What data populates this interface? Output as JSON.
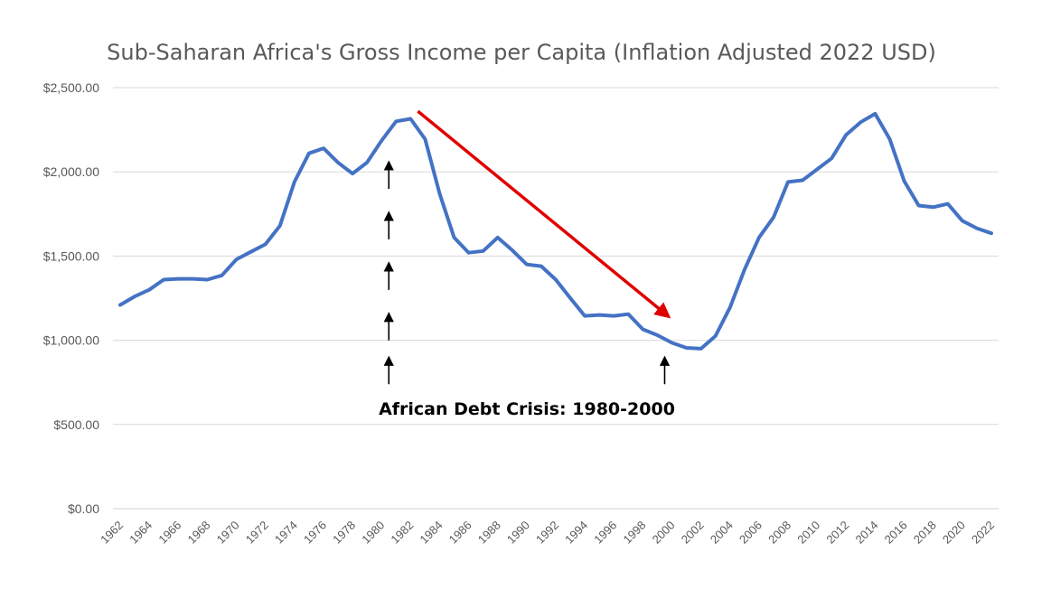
{
  "chart_data": {
    "type": "line",
    "title": "Sub-Saharan Africa's Gross Income per Capita (Inflation Adjusted 2022 USD)",
    "xlabel": "",
    "ylabel": "",
    "ylim": [
      0,
      2500
    ],
    "yticks": [
      0,
      500,
      1000,
      1500,
      2000,
      2500
    ],
    "ytick_labels": [
      "$0.00",
      "$500.00",
      "$1,000.00",
      "$1,500.00",
      "$2,000.00",
      "$2,500.00"
    ],
    "xtick_labels": [
      "1962",
      "1964",
      "1966",
      "1968",
      "1970",
      "1972",
      "1974",
      "1976",
      "1978",
      "1980",
      "1982",
      "1984",
      "1986",
      "1988",
      "1990",
      "1992",
      "1994",
      "1996",
      "1998",
      "2000",
      "2002",
      "2004",
      "2006",
      "2008",
      "2010",
      "2012",
      "2014",
      "2016",
      "2018",
      "2020",
      "2022"
    ],
    "grid": true,
    "legend": "none",
    "x": [
      1962,
      1963,
      1964,
      1965,
      1966,
      1967,
      1968,
      1969,
      1970,
      1971,
      1972,
      1973,
      1974,
      1975,
      1976,
      1977,
      1978,
      1979,
      1980,
      1981,
      1982,
      1983,
      1984,
      1985,
      1986,
      1987,
      1988,
      1989,
      1990,
      1991,
      1992,
      1993,
      1994,
      1995,
      1996,
      1997,
      1998,
      1999,
      2000,
      2001,
      2002,
      2003,
      2004,
      2005,
      2006,
      2007,
      2008,
      2009,
      2010,
      2011,
      2012,
      2013,
      2014,
      2015,
      2016,
      2017,
      2018,
      2019,
      2020,
      2021,
      2022
    ],
    "series": [
      {
        "color": "#4472C4",
        "values": [
          1210,
          1260,
          1300,
          1360,
          1365,
          1365,
          1360,
          1385,
          1480,
          1525,
          1570,
          1680,
          1940,
          2110,
          2140,
          2055,
          1990,
          2055,
          2185,
          2300,
          2315,
          2195,
          1870,
          1610,
          1520,
          1530,
          1610,
          1535,
          1450,
          1440,
          1360,
          1250,
          1145,
          1150,
          1145,
          1155,
          1065,
          1030,
          985,
          955,
          950,
          1025,
          1195,
          1420,
          1610,
          1730,
          1940,
          1950,
          2015,
          2080,
          2220,
          2295,
          2345,
          2195,
          1945,
          1800,
          1790,
          1810,
          1710,
          1665,
          1635
        ]
      }
    ],
    "annotations": {
      "text": "African Debt Crisis: 1980-2000",
      "trend_arrow": {
        "color": "#E00000",
        "from": [
          1982.5,
          2360
        ],
        "to": [
          1999.5,
          1160
        ]
      },
      "marker_arrows": [
        {
          "x": 1980.5,
          "tip": 2060
        },
        {
          "x": 1980.5,
          "tip": 1760
        },
        {
          "x": 1980.5,
          "tip": 1460
        },
        {
          "x": 1980.5,
          "tip": 1160
        },
        {
          "x": 1980.5,
          "tip": 900
        },
        {
          "x": 1999.5,
          "tip": 900
        }
      ]
    }
  }
}
